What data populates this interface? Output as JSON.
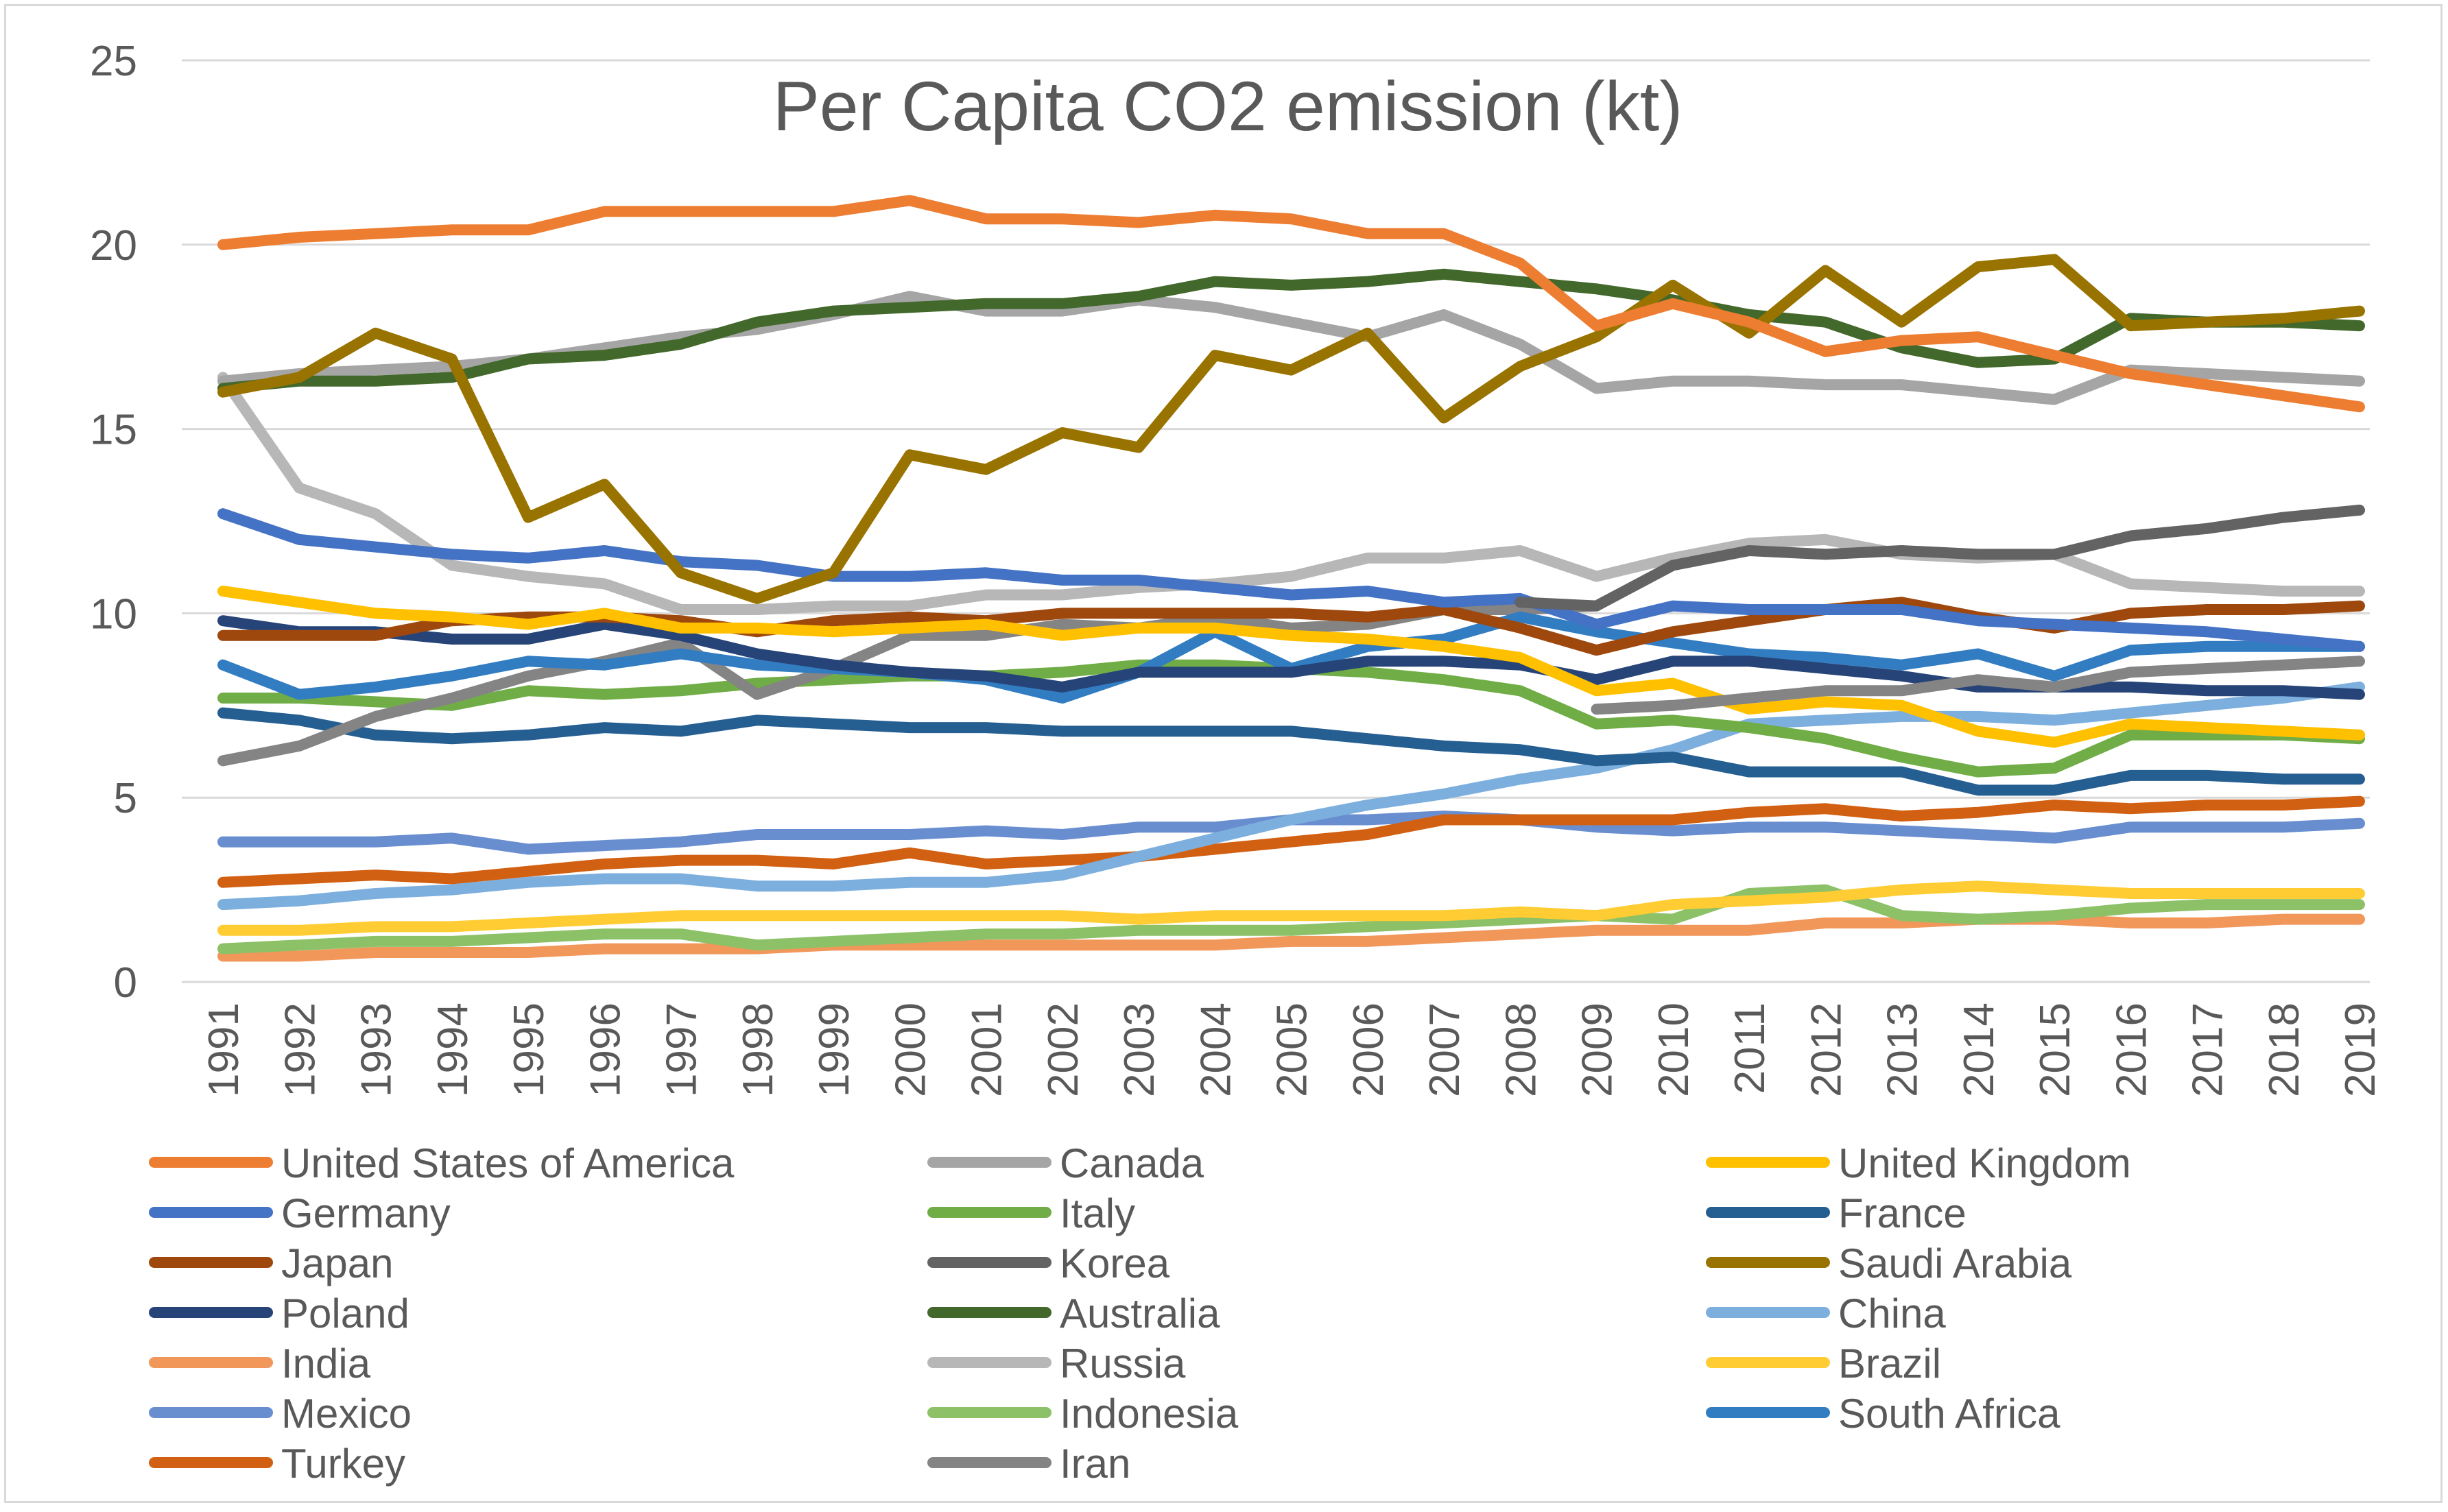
{
  "chart_data": {
    "type": "line",
    "title": "Per Capita CO2 emission (kt)",
    "xlabel": "",
    "ylabel": "",
    "ylim": [
      0,
      25
    ],
    "yticks": [
      0,
      5,
      10,
      15,
      20,
      25
    ],
    "grid": true,
    "legend_position": "bottom",
    "categories": [
      "1991",
      "1992",
      "1993",
      "1994",
      "1995",
      "1996",
      "1997",
      "1998",
      "1999",
      "2000",
      "2001",
      "2002",
      "2003",
      "2004",
      "2005",
      "2006",
      "2007",
      "2008",
      "2009",
      "2010",
      "2011",
      "2012",
      "2013",
      "2014",
      "2015",
      "2016",
      "2017",
      "2018",
      "2019"
    ],
    "series": [
      {
        "name": "United States of America",
        "color": "#ED7D31",
        "values": [
          20.0,
          20.2,
          20.3,
          20.4,
          20.4,
          20.9,
          20.9,
          20.9,
          20.9,
          21.2,
          20.7,
          20.7,
          20.6,
          20.8,
          20.7,
          20.3,
          20.3,
          19.5,
          17.8,
          18.4,
          17.9,
          17.1,
          17.4,
          17.5,
          17.0,
          16.5,
          16.2,
          15.9,
          15.6
        ]
      },
      {
        "name": "Canada",
        "color": "#A5A5A5",
        "values": [
          16.3,
          16.5,
          16.6,
          16.7,
          16.9,
          17.2,
          17.5,
          17.7,
          18.1,
          18.6,
          18.2,
          18.2,
          18.5,
          18.3,
          17.9,
          17.5,
          18.1,
          17.3,
          16.1,
          16.3,
          16.3,
          16.2,
          16.2,
          16.0,
          15.8,
          16.6,
          16.5,
          16.4,
          16.3
        ]
      },
      {
        "name": "United Kingdom",
        "color": "#FFC000",
        "values": [
          10.6,
          10.3,
          10.0,
          9.9,
          9.7,
          10.0,
          9.6,
          9.6,
          9.5,
          9.6,
          9.7,
          9.4,
          9.6,
          9.6,
          9.4,
          9.3,
          9.1,
          8.8,
          7.9,
          8.1,
          7.4,
          7.6,
          7.5,
          6.8,
          6.5,
          7.0,
          6.9,
          6.8,
          6.7
        ]
      },
      {
        "name": "Germany",
        "color": "#4472C4",
        "values": [
          12.7,
          12.0,
          11.8,
          11.6,
          11.5,
          11.7,
          11.4,
          11.3,
          11.0,
          11.0,
          11.1,
          10.9,
          10.9,
          10.7,
          10.5,
          10.6,
          10.3,
          10.4,
          9.7,
          10.2,
          10.1,
          10.1,
          10.1,
          9.8,
          9.7,
          9.6,
          9.5,
          9.3,
          9.1
        ]
      },
      {
        "name": "Italy",
        "color": "#70AD47",
        "values": [
          7.7,
          7.7,
          7.6,
          7.5,
          7.9,
          7.8,
          7.9,
          8.1,
          8.2,
          8.3,
          8.3,
          8.4,
          8.6,
          8.6,
          8.5,
          8.4,
          8.2,
          7.9,
          7.0,
          7.1,
          6.9,
          6.6,
          6.1,
          5.7,
          5.8,
          6.7,
          6.7,
          6.7,
          6.6
        ]
      },
      {
        "name": "France",
        "color": "#255E91",
        "values": [
          7.3,
          7.1,
          6.7,
          6.6,
          6.7,
          6.9,
          6.8,
          7.1,
          7.0,
          6.9,
          6.9,
          6.8,
          6.8,
          6.8,
          6.8,
          6.6,
          6.4,
          6.3,
          6.0,
          6.1,
          5.7,
          5.7,
          5.7,
          5.2,
          5.2,
          5.6,
          5.6,
          5.5,
          5.5
        ]
      },
      {
        "name": "Japan",
        "color": "#9E480E",
        "values": [
          9.4,
          9.4,
          9.4,
          9.8,
          9.9,
          9.9,
          9.8,
          9.5,
          9.8,
          9.9,
          9.8,
          10.0,
          10.0,
          10.0,
          10.0,
          9.9,
          10.1,
          9.6,
          9.0,
          9.5,
          9.8,
          10.1,
          10.3,
          9.9,
          9.6,
          10.0,
          10.1,
          10.1,
          10.2
        ]
      },
      {
        "name": "Korea",
        "color": "#636363",
        "values": [
          null,
          null,
          null,
          null,
          null,
          null,
          null,
          null,
          null,
          null,
          null,
          null,
          null,
          null,
          null,
          null,
          null,
          10.3,
          10.2,
          11.3,
          11.7,
          11.6,
          11.7,
          11.6,
          11.6,
          12.1,
          12.3,
          12.6,
          12.8
        ]
      },
      {
        "name": "Saudi Arabia",
        "color": "#997300",
        "values": [
          16.0,
          16.4,
          17.6,
          16.9,
          12.6,
          13.5,
          11.1,
          10.4,
          11.1,
          14.3,
          13.9,
          14.9,
          14.5,
          17.0,
          16.6,
          17.6,
          15.3,
          16.7,
          17.5,
          18.9,
          17.6,
          19.3,
          17.9,
          19.4,
          19.6,
          17.8,
          17.9,
          18.0,
          18.2
        ]
      },
      {
        "name": "Poland",
        "color": "#264478",
        "values": [
          9.8,
          9.5,
          9.5,
          9.3,
          9.3,
          9.7,
          9.4,
          8.9,
          8.6,
          8.4,
          8.3,
          8.0,
          8.4,
          8.4,
          8.4,
          8.7,
          8.7,
          8.6,
          8.2,
          8.7,
          8.7,
          8.5,
          8.3,
          8.0,
          8.0,
          8.0,
          7.9,
          7.9,
          7.8
        ]
      },
      {
        "name": "Australia",
        "color": "#43682B",
        "values": [
          16.1,
          16.3,
          16.3,
          16.4,
          16.9,
          17.0,
          17.3,
          17.9,
          18.2,
          18.3,
          18.4,
          18.4,
          18.6,
          19.0,
          18.9,
          19.0,
          19.2,
          19.0,
          18.8,
          18.5,
          18.1,
          17.9,
          17.2,
          16.8,
          16.9,
          18.0,
          17.9,
          17.9,
          17.8
        ]
      },
      {
        "name": "China",
        "color": "#7CAFDD",
        "values": [
          2.1,
          2.2,
          2.4,
          2.5,
          2.7,
          2.8,
          2.8,
          2.6,
          2.6,
          2.7,
          2.7,
          2.9,
          3.4,
          3.9,
          4.4,
          4.8,
          5.1,
          5.5,
          5.8,
          6.3,
          7.0,
          7.1,
          7.2,
          7.2,
          7.1,
          7.3,
          7.5,
          7.7,
          8.0
        ]
      },
      {
        "name": "India",
        "color": "#F1975A",
        "values": [
          0.7,
          0.7,
          0.8,
          0.8,
          0.8,
          0.9,
          0.9,
          0.9,
          1.0,
          1.0,
          1.0,
          1.0,
          1.0,
          1.0,
          1.1,
          1.1,
          1.2,
          1.3,
          1.4,
          1.4,
          1.4,
          1.6,
          1.6,
          1.7,
          1.7,
          1.6,
          1.6,
          1.7,
          1.7
        ]
      },
      {
        "name": "Russia",
        "color": "#B7B7B7",
        "values": [
          16.4,
          13.4,
          12.7,
          11.3,
          11.0,
          10.8,
          10.1,
          10.1,
          10.2,
          10.2,
          10.5,
          10.5,
          10.7,
          10.8,
          11.0,
          11.5,
          11.5,
          11.7,
          11.0,
          11.5,
          11.9,
          12.0,
          11.6,
          11.5,
          11.6,
          10.8,
          10.7,
          10.6,
          10.6
        ]
      },
      {
        "name": "Brazil",
        "color": "#FFCD33",
        "values": [
          1.4,
          1.4,
          1.5,
          1.5,
          1.6,
          1.7,
          1.8,
          1.8,
          1.8,
          1.8,
          1.8,
          1.8,
          1.7,
          1.8,
          1.8,
          1.8,
          1.8,
          1.9,
          1.8,
          2.1,
          2.2,
          2.3,
          2.5,
          2.6,
          2.5,
          2.4,
          2.4,
          2.4,
          2.4
        ]
      },
      {
        "name": "Mexico",
        "color": "#698ED0",
        "values": [
          3.8,
          3.8,
          3.8,
          3.9,
          3.6,
          3.7,
          3.8,
          4.0,
          4.0,
          4.0,
          4.1,
          4.0,
          4.2,
          4.2,
          4.4,
          4.4,
          4.5,
          4.4,
          4.2,
          4.1,
          4.2,
          4.2,
          4.1,
          4.0,
          3.9,
          4.2,
          4.2,
          4.2,
          4.3
        ]
      },
      {
        "name": "Indonesia",
        "color": "#8CC168",
        "values": [
          0.9,
          1.0,
          1.1,
          1.1,
          1.2,
          1.3,
          1.3,
          1.0,
          1.1,
          1.2,
          1.3,
          1.3,
          1.4,
          1.4,
          1.4,
          1.5,
          1.6,
          1.7,
          1.8,
          1.7,
          2.4,
          2.5,
          1.8,
          1.7,
          1.8,
          2.0,
          2.1,
          2.1,
          2.1
        ]
      },
      {
        "name": "South Africa",
        "color": "#327DC2",
        "values": [
          8.6,
          7.8,
          8.0,
          8.3,
          8.7,
          8.6,
          8.9,
          8.6,
          8.5,
          8.4,
          8.2,
          7.7,
          8.4,
          9.5,
          8.5,
          9.1,
          9.3,
          9.9,
          9.5,
          9.2,
          8.9,
          8.8,
          8.6,
          8.9,
          8.3,
          9.0,
          9.1,
          9.1,
          9.1
        ]
      },
      {
        "name": "Turkey",
        "color": "#D26012",
        "values": [
          2.7,
          2.8,
          2.9,
          2.8,
          3.0,
          3.2,
          3.3,
          3.3,
          3.2,
          3.5,
          3.2,
          3.3,
          3.4,
          3.6,
          3.8,
          4.0,
          4.4,
          4.4,
          4.4,
          4.4,
          4.6,
          4.7,
          4.5,
          4.6,
          4.8,
          4.7,
          4.8,
          4.8,
          4.9
        ]
      },
      {
        "name": "Iran",
        "color": "#848484",
        "values": [
          6.0,
          6.4,
          7.2,
          7.7,
          8.3,
          8.7,
          9.2,
          7.8,
          8.5,
          9.4,
          9.4,
          9.7,
          9.6,
          9.9,
          9.6,
          9.7,
          10.1,
          10.1,
          10.2,
          null,
          null,
          null,
          null,
          null,
          null,
          null,
          null,
          null,
          null
        ]
      }
    ],
    "extra_segments": [
      {
        "name": "Iran",
        "color": "#848484",
        "from_index": 9,
        "values": [
          null,
          null,
          null,
          null,
          null,
          null,
          null,
          null,
          null,
          null,
          null,
          null,
          null,
          null,
          null,
          null,
          null,
          null,
          7.4,
          7.5,
          7.7,
          7.9,
          7.9,
          8.2,
          8.0,
          8.4,
          8.5,
          8.6,
          8.7
        ]
      },
      {
        "name": "Korea",
        "color": "#636363",
        "values": [
          null,
          null,
          null,
          null,
          null,
          null,
          null,
          null,
          null,
          null,
          null,
          null,
          null,
          null,
          null,
          null,
          null,
          null,
          null,
          null,
          null,
          null,
          null,
          null,
          null,
          null,
          null,
          null,
          null
        ]
      }
    ]
  }
}
